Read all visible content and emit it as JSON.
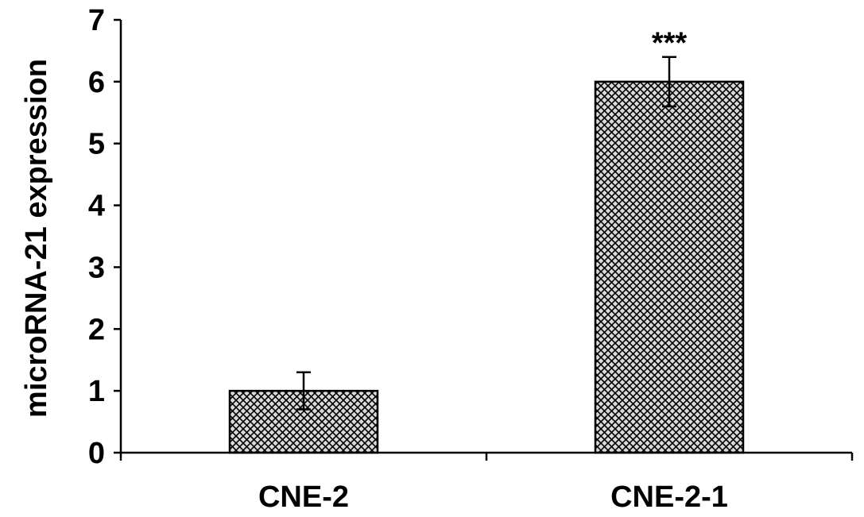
{
  "chart_data": {
    "type": "bar",
    "title": "",
    "xlabel": "",
    "ylabel": "microRNA-21 expression",
    "categories": [
      "CNE-2",
      "CNE-2-1"
    ],
    "values": [
      1.0,
      6.0
    ],
    "errors": [
      0.3,
      0.4
    ],
    "annotations": [
      "",
      "***"
    ],
    "ylim": [
      0,
      7
    ],
    "yticks": [
      "0",
      "1",
      "2",
      "3",
      "4",
      "5",
      "6",
      "7"
    ],
    "grid": false,
    "legend": "none",
    "bar_fill": "crosshatch",
    "colors": {
      "bar_fill_bg": "#d9d9d9",
      "bar_hatch": "#000000",
      "axis": "#000000"
    }
  }
}
